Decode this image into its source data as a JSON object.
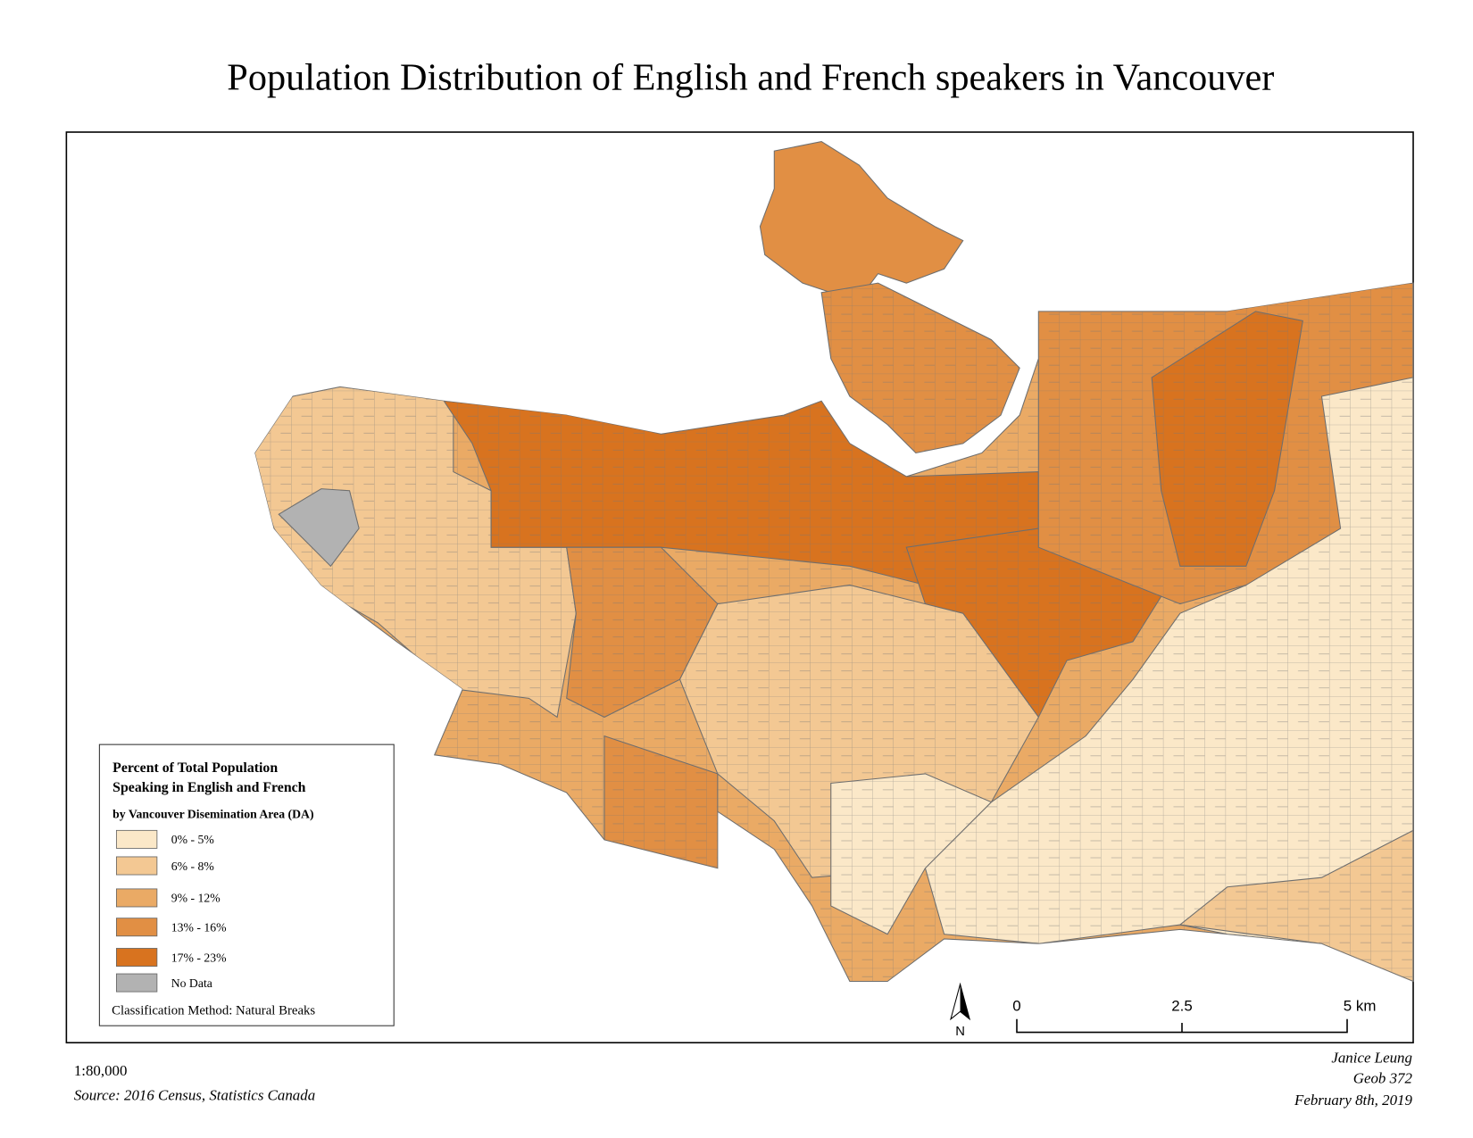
{
  "title": "Population Distribution of English and French speakers in Vancouver",
  "legend": {
    "title_lines": [
      "Percent of Total Population",
      "Speaking in English and French"
    ],
    "subtitle": "by Vancouver Disemination Area (DA)",
    "items": [
      {
        "label": "0% - 5%",
        "color": "#fbe8c8"
      },
      {
        "label": "6% - 8%",
        "color": "#f3c893"
      },
      {
        "label": "9% - 12%",
        "color": "#eaaa65"
      },
      {
        "label": "13% - 16%",
        "color": "#e18f44"
      },
      {
        "label": "17% - 23%",
        "color": "#d8731f"
      },
      {
        "label": "No Data",
        "color": "#b2b2b2"
      }
    ],
    "method": "Classification Method: Natural Breaks"
  },
  "north_arrow": "N",
  "scale_bar": [
    "0",
    "2.5",
    "5 km"
  ],
  "map_scale": "1:80,000",
  "source": "Source: 2016 Census, Statistics Canada",
  "credits": [
    "Janice Leung",
    "Geob 372",
    "February 8th, 2019"
  ]
}
